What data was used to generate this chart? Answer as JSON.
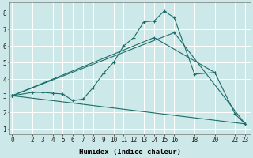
{
  "xlabel": "Humidex (Indice chaleur)",
  "ylabel": "",
  "bg_color": "#cde8e8",
  "grid_color": "#ffffff",
  "line_color": "#1a6e6a",
  "xticks": [
    0,
    2,
    3,
    4,
    5,
    6,
    7,
    8,
    9,
    10,
    11,
    12,
    13,
    14,
    15,
    16,
    18,
    20,
    22,
    23
  ],
  "yticks": [
    1,
    2,
    3,
    4,
    5,
    6,
    7,
    8
  ],
  "xlim": [
    -0.3,
    23.5
  ],
  "ylim": [
    0.7,
    8.6
  ],
  "series": [
    {
      "x": [
        0,
        2,
        3,
        4,
        5,
        6,
        7,
        8,
        9,
        10,
        11,
        12,
        13,
        14,
        15,
        16,
        18,
        20,
        22,
        23
      ],
      "y": [
        3.0,
        3.2,
        3.2,
        3.15,
        3.1,
        2.7,
        2.8,
        3.5,
        4.35,
        5.0,
        6.0,
        6.5,
        7.45,
        7.5,
        8.1,
        7.7,
        4.3,
        4.4,
        1.9,
        1.3
      ]
    },
    {
      "x": [
        0,
        16,
        23
      ],
      "y": [
        3.0,
        6.8,
        1.3
      ]
    },
    {
      "x": [
        0,
        14,
        20
      ],
      "y": [
        3.0,
        6.5,
        4.4
      ]
    },
    {
      "x": [
        0,
        23
      ],
      "y": [
        3.0,
        1.3
      ]
    }
  ],
  "axis_fontsize": 6.5,
  "tick_fontsize": 5.5,
  "xlabel_fontsize": 6.5
}
